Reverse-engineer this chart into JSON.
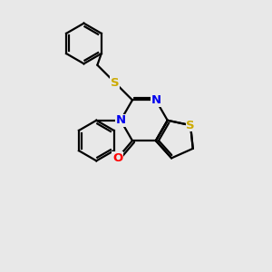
{
  "background_color": "#e8e8e8",
  "atom_colors": {
    "S": "#ccaa00",
    "N": "#0000ee",
    "O": "#ff0000",
    "C": "#000000"
  },
  "line_color": "#000000",
  "line_width": 1.6,
  "figsize": [
    3.0,
    3.0
  ],
  "dpi": 100
}
